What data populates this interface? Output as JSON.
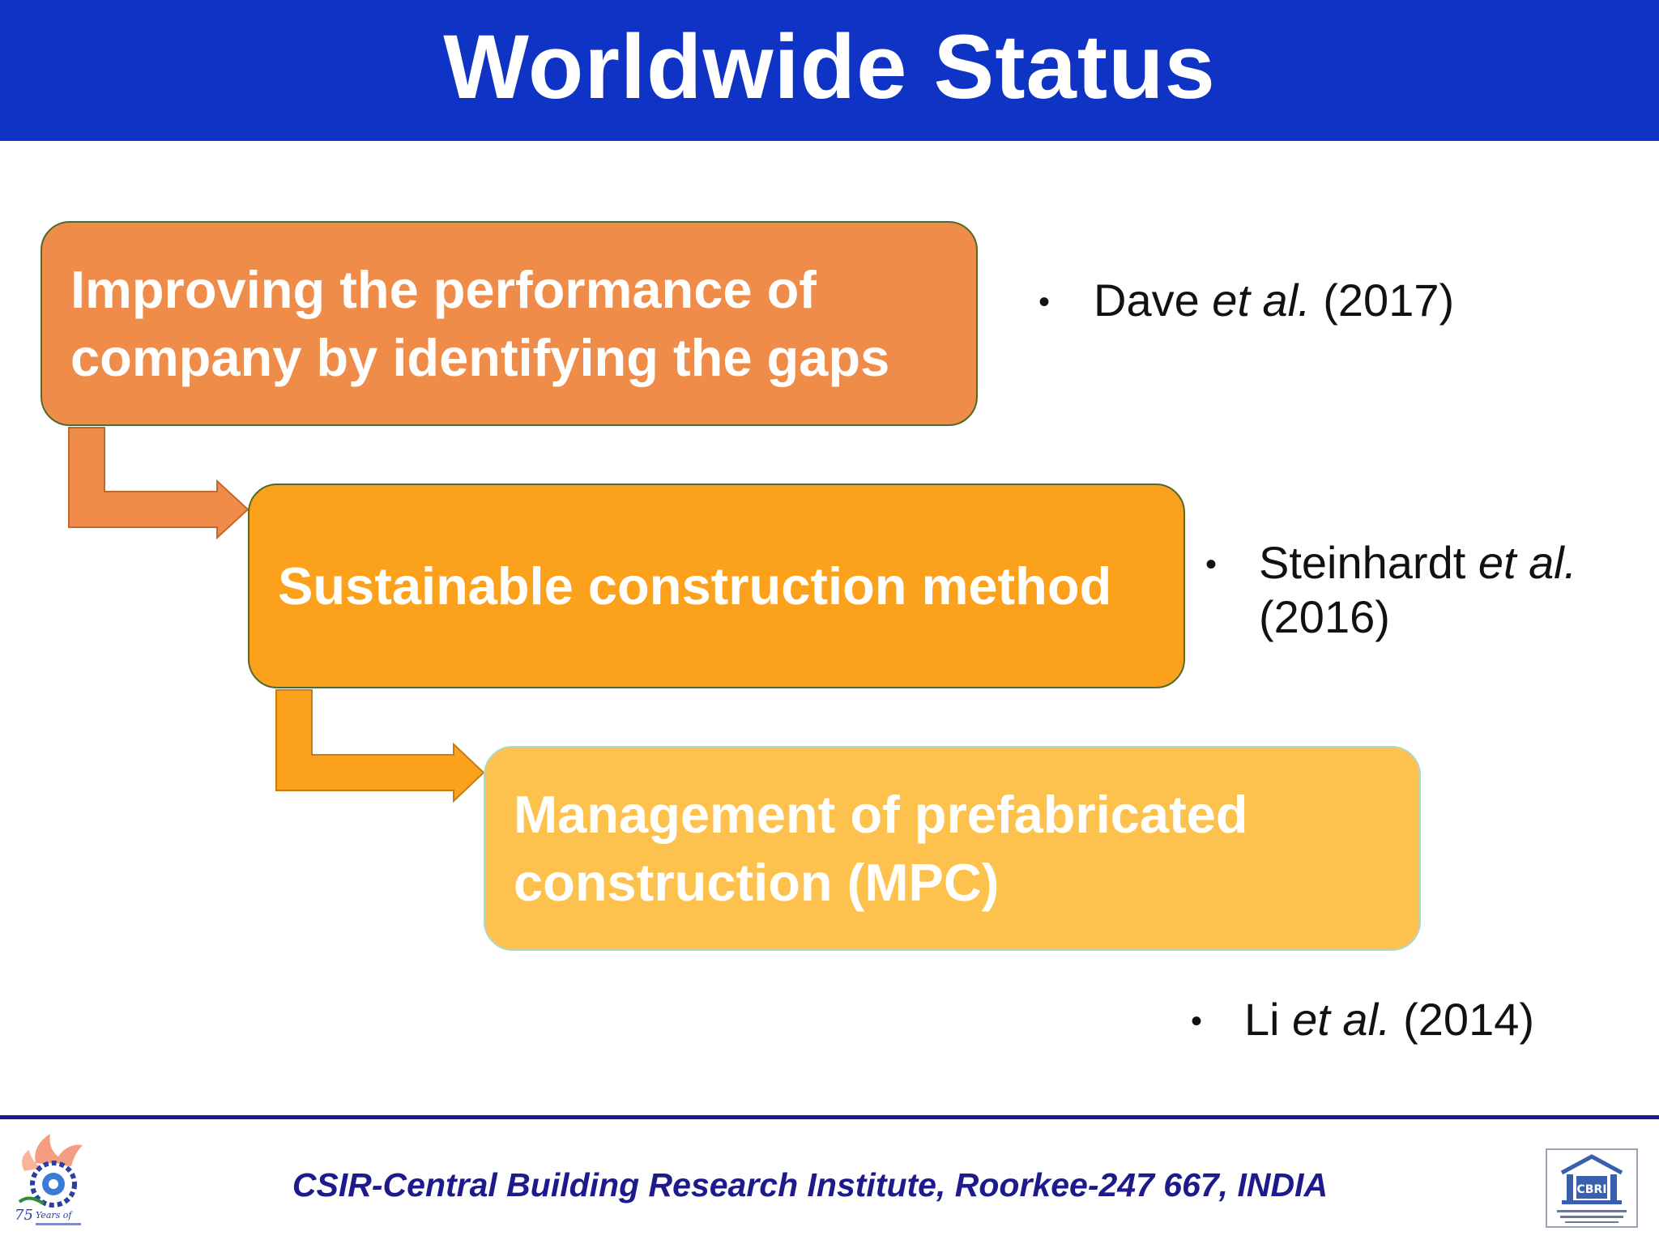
{
  "header": {
    "title": "Worldwide Status",
    "background_color": "#0f33c4"
  },
  "flow": {
    "boxes": [
      {
        "text": "Improving the performance of\ncompany by identifying the  gaps",
        "color": "#ef8c4a"
      },
      {
        "text": "Sustainable construction method",
        "color": "#fca11c"
      },
      {
        "text": "Management of prefabricated\nconstruction (MPC)",
        "color": "#fdc14e"
      }
    ]
  },
  "references": [
    {
      "author": "Dave",
      "etal": "et al.",
      "year": "(2017)"
    },
    {
      "author": "Steinhardt",
      "etal": "et al.",
      "year": "(2016)"
    },
    {
      "author": "Li",
      "etal": "et al.",
      "year": "(2014)"
    }
  ],
  "footer": {
    "text": "CSIR-Central Building Research Institute, Roorkee-247 667, INDIA",
    "color": "#1d1a8c",
    "left_logo_icon": "csir-75-years-logo-icon",
    "right_logo_icon": "cbri-logo-icon",
    "right_logo_text": "CBRI"
  }
}
